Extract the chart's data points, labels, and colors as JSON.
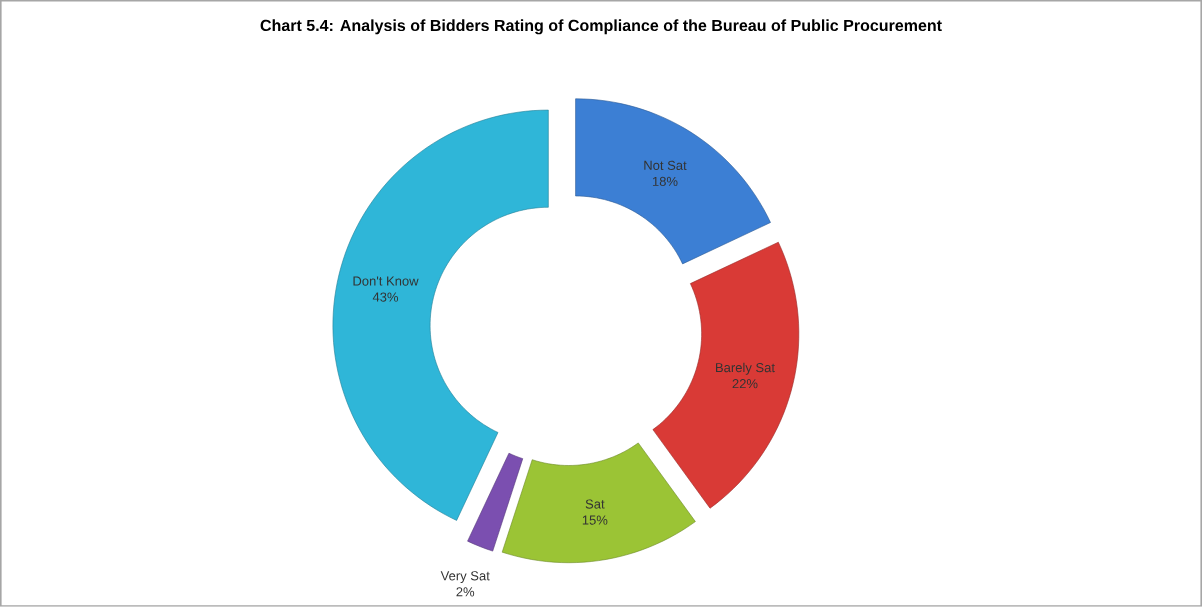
{
  "chart_data": {
    "type": "donut",
    "title": "Chart 5.4: Analysis of Bidders Rating of Compliance of the Bureau of Public Procurement",
    "categories": [
      "Not Sat",
      "Barely Sat",
      "Sat",
      "Very Sat",
      "Don't Know"
    ],
    "values": [
      18,
      22,
      15,
      2,
      43
    ],
    "value_labels": [
      "18%",
      "22%",
      "15%",
      "2%",
      "43%"
    ],
    "colors": [
      "#3c7fd4",
      "#d93a36",
      "#9bc435",
      "#7b4fb0",
      "#2fb6d8"
    ]
  }
}
